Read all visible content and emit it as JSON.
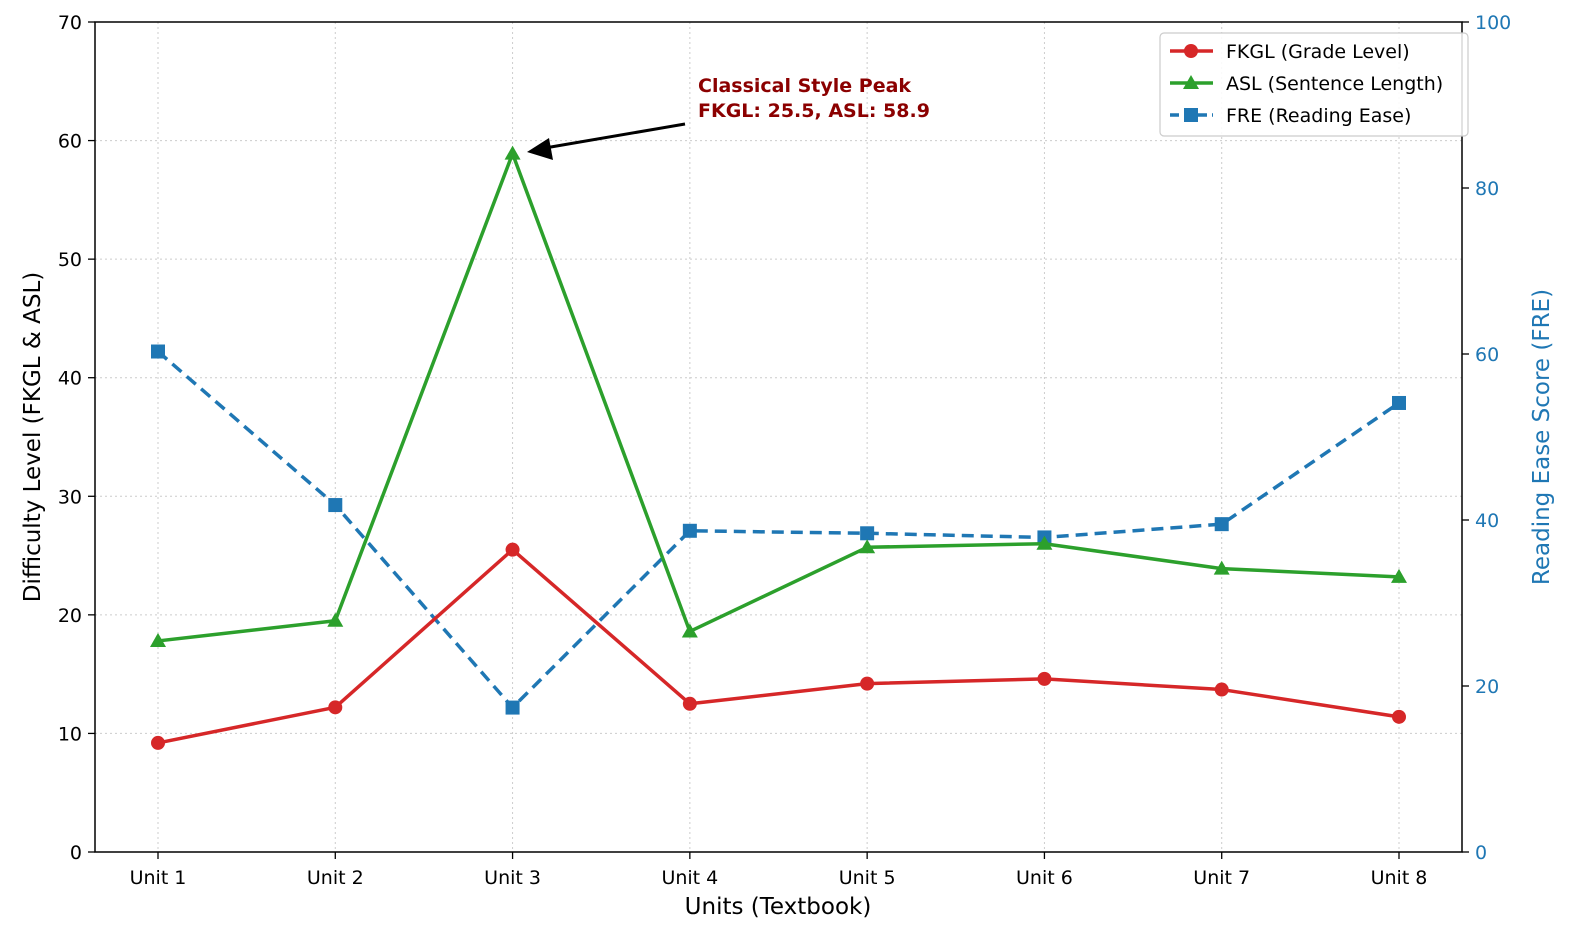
{
  "chart_data": {
    "type": "line",
    "categories": [
      "Unit 1",
      "Unit 2",
      "Unit 3",
      "Unit 4",
      "Unit 5",
      "Unit 6",
      "Unit 7",
      "Unit 8"
    ],
    "xlabel": "Units (Textbook)",
    "ylabel": "Difficulty Level (FKGL & ASL)",
    "ylabel_right": "Reading Ease Score (FRE)",
    "ylim": [
      0,
      70
    ],
    "ylim_right": [
      0,
      100
    ],
    "yticks": [
      0,
      10,
      20,
      30,
      40,
      50,
      60,
      70
    ],
    "yticks_right": [
      0,
      20,
      40,
      60,
      80,
      100
    ],
    "grid": true,
    "legend_position": "top-right",
    "series": [
      {
        "name": "FKGL (Grade Level)",
        "axis": "left",
        "color": "#d62728",
        "marker": "circle",
        "line": "solid",
        "values": [
          9.2,
          12.2,
          25.5,
          12.5,
          14.2,
          14.6,
          13.7,
          11.4
        ]
      },
      {
        "name": "ASL (Sentence Length)",
        "axis": "left",
        "color": "#2ca02c",
        "marker": "triangle",
        "line": "solid",
        "values": [
          17.8,
          19.5,
          58.9,
          18.6,
          25.7,
          26.0,
          23.9,
          23.2
        ]
      },
      {
        "name": "FRE (Reading Ease)",
        "axis": "right",
        "color": "#1f77b4",
        "marker": "square",
        "line": "dashed",
        "values": [
          60.3,
          41.8,
          17.4,
          38.7,
          38.4,
          37.9,
          39.5,
          54.1
        ]
      }
    ],
    "annotation": {
      "line1": "Classical Style Peak",
      "line2": "FKGL: 25.5, ASL: 58.9",
      "target_category": "Unit 3",
      "target_series": "ASL (Sentence Length)",
      "color": "#8b0000"
    }
  }
}
